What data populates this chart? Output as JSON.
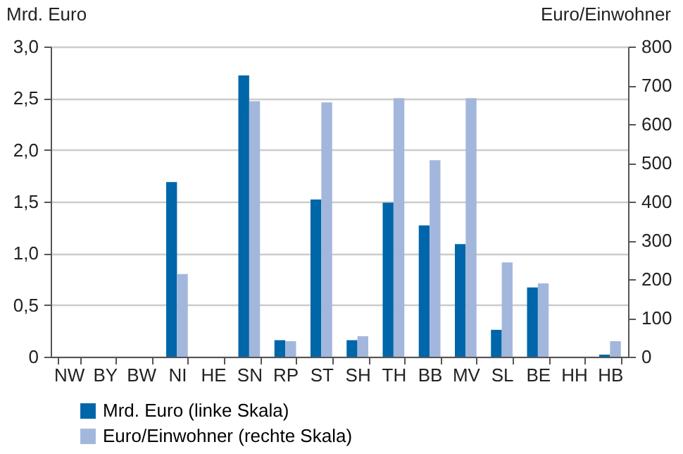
{
  "chart_data": {
    "type": "bar",
    "categories": [
      "NW",
      "BY",
      "BW",
      "NI",
      "HE",
      "SN",
      "RP",
      "ST",
      "SH",
      "TH",
      "BB",
      "MV",
      "SL",
      "BE",
      "HH",
      "HB"
    ],
    "ylabel": "Mrd. Euro",
    "y2label": "Euro/Einwohner",
    "series": [
      {
        "name": "Mrd. Euro (linke Skala)",
        "color": "#0066aa",
        "values": [
          0,
          0,
          0,
          1.69,
          0,
          2.72,
          0.16,
          1.52,
          0.16,
          1.49,
          1.27,
          1.09,
          0.26,
          0.67,
          0,
          0.02
        ]
      },
      {
        "name": "Euro/Einwohner (rechte Skala)",
        "color": "#a3b7dc",
        "axis": "y2",
        "values": [
          0,
          0,
          0,
          213,
          0,
          659,
          40,
          656,
          53,
          667,
          507,
          667,
          243,
          189,
          0,
          40
        ]
      }
    ],
    "ylim": [
      0,
      3
    ],
    "yticks": [
      0,
      {
        "value": 0.5,
        "label": "0,5"
      },
      {
        "value": 1,
        "label": "1,0"
      },
      {
        "value": 1.5,
        "label": "1,5"
      },
      {
        "value": 2,
        "label": "2,0"
      },
      {
        "value": 2.5,
        "label": "2,5"
      },
      {
        "value": 3,
        "label": "3,0"
      }
    ],
    "y2lim": [
      0,
      800
    ],
    "y2ticks": [
      0,
      100,
      200,
      300,
      400,
      500,
      600,
      700,
      800
    ],
    "grid": "y",
    "legend": "bottom left"
  }
}
